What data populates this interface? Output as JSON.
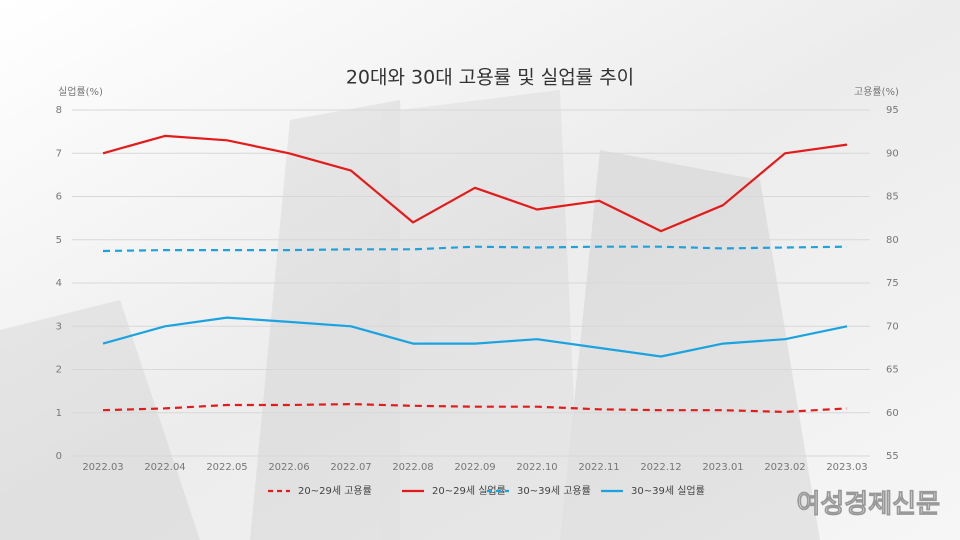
{
  "chart_data": {
    "type": "line",
    "title": "20대와 30대 고용률 및 실업률 추이",
    "y_label": "실업률(%)",
    "y2_label": "고용률(%)",
    "watermark": "여성경제신문",
    "categories": [
      "2022.03",
      "2022.04",
      "2022.05",
      "2022.06",
      "2022.07",
      "2022.08",
      "2022.09",
      "2022.10",
      "2022.11",
      "2022.12",
      "2023.01",
      "2023.02",
      "2023.03"
    ],
    "ylim": [
      0,
      8
    ],
    "yticks": [
      0,
      1,
      2,
      3,
      4,
      5,
      6,
      7,
      8
    ],
    "y2lim": [
      55,
      95
    ],
    "y2ticks": [
      55,
      60,
      65,
      70,
      75,
      80,
      85,
      90,
      95
    ],
    "grid": true,
    "legend": "bottom",
    "series": [
      {
        "name": "20~29세 고용률",
        "color": "#e31b1b",
        "dashed": true,
        "axis": "y2",
        "values": [
          60.3,
          60.5,
          60.9,
          60.9,
          61.0,
          60.8,
          60.7,
          60.7,
          60.4,
          60.3,
          60.3,
          60.1,
          60.5
        ]
      },
      {
        "name": "20~29세 실업률",
        "color": "#e31b1b",
        "dashed": false,
        "axis": "y",
        "values": [
          7.0,
          7.4,
          7.3,
          7.0,
          6.6,
          5.4,
          6.2,
          5.7,
          5.9,
          5.2,
          5.8,
          7.0,
          7.2
        ]
      },
      {
        "name": "30~39세 고용률",
        "color": "#1aa3e0",
        "dashed": true,
        "axis": "y2",
        "values": [
          78.7,
          78.8,
          78.8,
          78.8,
          78.9,
          78.9,
          79.2,
          79.1,
          79.2,
          79.2,
          79.0,
          79.1,
          79.2
        ]
      },
      {
        "name": "30~39세 실업률",
        "color": "#1aa3e0",
        "dashed": false,
        "axis": "y",
        "values": [
          2.6,
          3.0,
          3.2,
          3.1,
          3.0,
          2.6,
          2.6,
          2.7,
          2.5,
          2.3,
          2.6,
          2.7,
          3.0
        ]
      }
    ]
  }
}
